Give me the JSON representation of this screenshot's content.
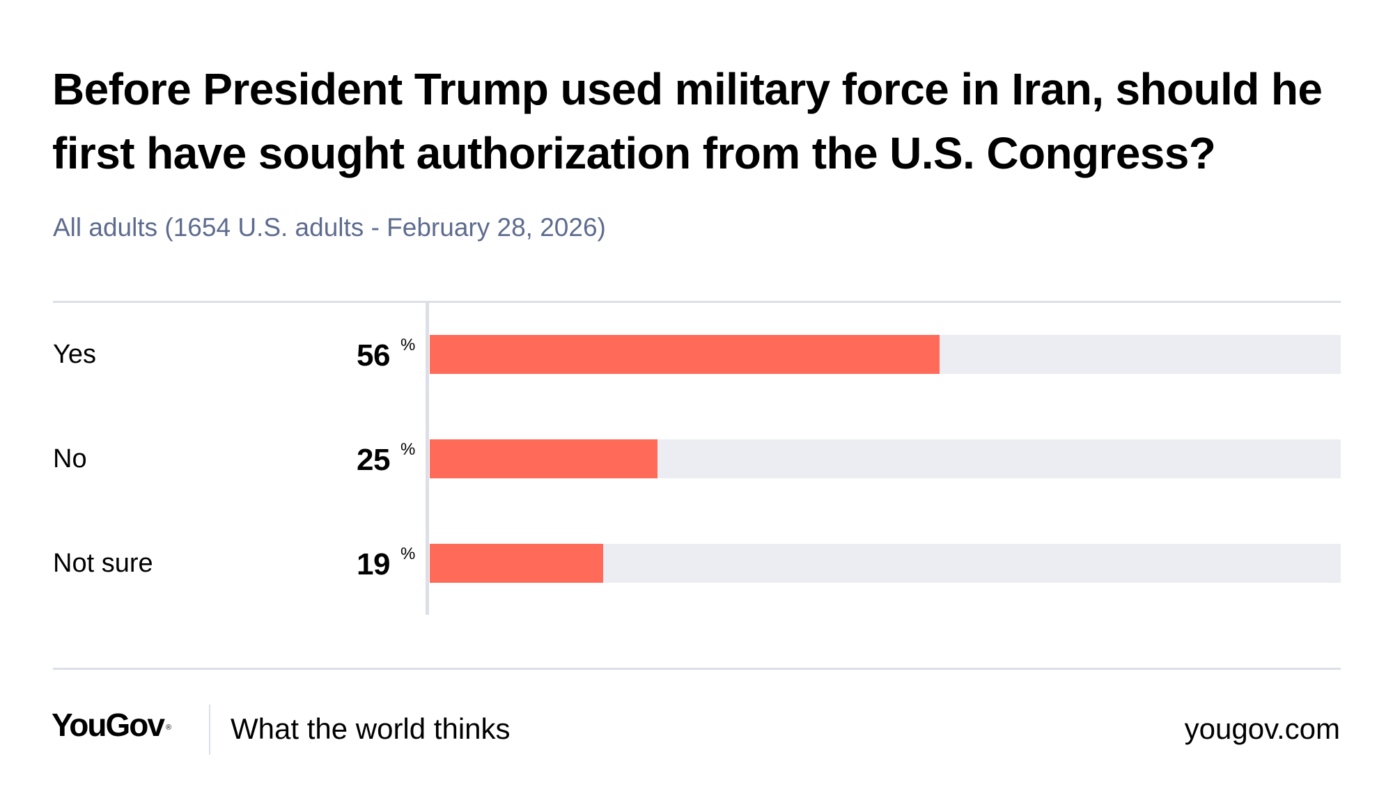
{
  "header": {
    "title": "Before President Trump used military force in Iran, should he first have sought authorization from the U.S. Congress?",
    "subtitle": "All adults (1654 U.S. adults - February 28, 2026)"
  },
  "colors": {
    "bar_fill": "#ff6a59",
    "bar_track": "#ecedf2",
    "rule": "#dcdfe8",
    "subtitle": "#5d6b8e"
  },
  "chart_data": {
    "type": "bar",
    "orientation": "horizontal",
    "title": "Before President Trump used military force in Iran, should he first have sought authorization from the U.S. Congress?",
    "subtitle": "All adults (1654 U.S. adults - February 28, 2026)",
    "categories": [
      "Yes",
      "No",
      "Not sure"
    ],
    "values": [
      56,
      25,
      19
    ],
    "value_suffix": "%",
    "xlim": [
      0,
      100
    ],
    "xlabel": "",
    "ylabel": "",
    "grid": false,
    "legend": "none"
  },
  "rows": [
    {
      "label": "Yes",
      "value": "56",
      "suffix": "%"
    },
    {
      "label": "No",
      "value": "25",
      "suffix": "%"
    },
    {
      "label": "Not sure",
      "value": "19",
      "suffix": "%"
    }
  ],
  "footer": {
    "logo": "YouGov",
    "logo_mark": "®",
    "tagline": "What the world thinks",
    "site": "yougov.com"
  }
}
